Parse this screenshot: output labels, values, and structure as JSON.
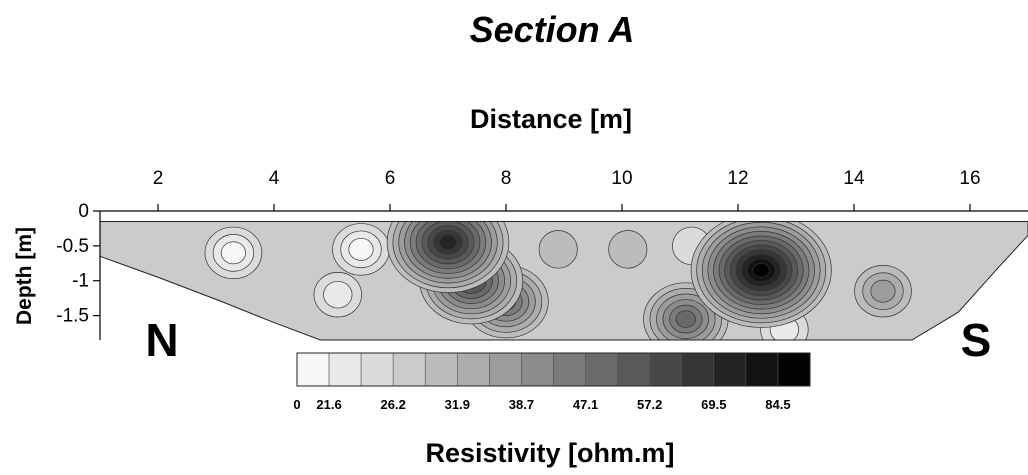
{
  "chart_data": {
    "type": "heatmap",
    "title": "Section A",
    "xlabel": "Distance [m]",
    "ylabel": "Depth [m]",
    "colorbar_label": "Resistivity [ohm.m]",
    "xlim": [
      1.0,
      17.0
    ],
    "ylim": [
      -1.85,
      0.0
    ],
    "x_ticks": [
      2,
      4,
      6,
      8,
      10,
      12,
      14,
      16
    ],
    "x_tick_labels": [
      "2",
      "4",
      "6",
      "8",
      "10",
      "12",
      "14",
      "16"
    ],
    "y_ticks": [
      0,
      -0.5,
      -1,
      -1.5
    ],
    "y_tick_labels": [
      "0",
      "-0.5",
      "-1",
      "-1.5"
    ],
    "x_axis_position": "top",
    "side_labels": {
      "left": "N",
      "right": "S"
    },
    "colorscale": {
      "colors": [
        "#f7f7f7",
        "#e9e9e9",
        "#dbdbdb",
        "#cbcbcb",
        "#bcbcbc",
        "#acacac",
        "#9c9c9c",
        "#8c8c8c",
        "#7b7b7b",
        "#6a6a6a",
        "#595959",
        "#484848",
        "#363636",
        "#242424",
        "#121212",
        "#030303"
      ],
      "tick_labels": [
        "0",
        "21.6",
        "26.2",
        "31.9",
        "38.7",
        "47.1",
        "57.2",
        "69.5",
        "84.5"
      ],
      "tick_boundaries": [
        0,
        1,
        3,
        5,
        7,
        9,
        11,
        13,
        15
      ]
    },
    "section_outline": {
      "top_depth": -0.15,
      "bottom_depth": -1.85,
      "points": [
        [
          1.0,
          -0.65
        ],
        [
          2.0,
          -0.95
        ],
        [
          3.1,
          -1.3
        ],
        [
          4.0,
          -1.6
        ],
        [
          4.8,
          -1.85
        ],
        [
          15.0,
          -1.85
        ],
        [
          15.8,
          -1.45
        ],
        [
          16.5,
          -0.8
        ],
        [
          17.0,
          -0.35
        ]
      ]
    },
    "anomalies": [
      {
        "x": 3.3,
        "depth": -0.6,
        "resistivity": 5,
        "level": 0
      },
      {
        "x": 5.1,
        "depth": -1.2,
        "resistivity": 14,
        "level": 1
      },
      {
        "x": 5.5,
        "depth": -0.55,
        "resistivity": 5,
        "level": 0
      },
      {
        "x": 7.0,
        "depth": -0.45,
        "resistivity": 78,
        "level": 13
      },
      {
        "x": 7.4,
        "depth": -1.0,
        "resistivity": 65,
        "level": 11
      },
      {
        "x": 8.0,
        "depth": -1.3,
        "resistivity": 50,
        "level": 9
      },
      {
        "x": 8.9,
        "depth": -0.55,
        "resistivity": 27,
        "level": 3
      },
      {
        "x": 10.1,
        "depth": -0.55,
        "resistivity": 27,
        "level": 3
      },
      {
        "x": 11.1,
        "depth": -1.55,
        "resistivity": 47,
        "level": 9
      },
      {
        "x": 11.2,
        "depth": -0.5,
        "resistivity": 24,
        "level": 2
      },
      {
        "x": 12.4,
        "depth": -0.85,
        "resistivity": 95,
        "level": 15
      },
      {
        "x": 12.8,
        "depth": -1.7,
        "resistivity": 22,
        "level": 1
      },
      {
        "x": 14.5,
        "depth": -1.15,
        "resistivity": 38,
        "level": 6
      }
    ]
  }
}
